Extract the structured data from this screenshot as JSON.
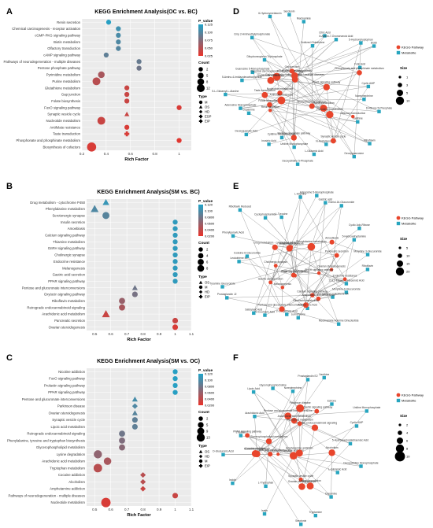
{
  "chart_data": [
    {
      "panel_letter": "A",
      "type": "scatter",
      "title": "KEGG Enrichment Analysis(OC vs. BC)",
      "xlabel": "Rich Factor",
      "xlim": [
        0.2,
        1.1
      ],
      "xticks": [
        "0.2",
        "0.4",
        "0.6",
        "0.8",
        "1"
      ],
      "legend_pvalue_title": "P_value",
      "legend_pvalue_ticks": [
        "0.125",
        "0.100",
        "0.075",
        "0.050",
        "0.025"
      ],
      "legend_count_title": "Count",
      "legend_count_values": [
        2,
        5,
        8,
        12
      ],
      "legend_type_title": "Type",
      "legend_types": [
        "M",
        "OS",
        "HD",
        "ESP",
        "EIP"
      ],
      "color_high": "#1fa3c9",
      "color_low": "#e8332a",
      "categories": [
        "Renin secretion",
        "Chemical carcinogenesis - receptor activation",
        "cGMP-PKG signaling pathway",
        "Biotin metabolism",
        "Olfactory transduction",
        "cAMP signaling pathway",
        "Pathways of neurodegeneration - multiple diseases",
        "Pentose phosphate pathway",
        "Pyrimidine metabolism",
        "Purine metabolism",
        "Glutathione metabolism",
        "Gap junction",
        "Folate biosynthesis",
        "FoxO signaling pathway",
        "Synaptic vesicle cycle",
        "Nucleotide metabolism",
        "Antifolate resistance",
        "Taste transduction",
        "Phosphonate and phosphinate metabolism",
        "Biosynthesis of cofactors"
      ],
      "points": [
        {
          "x": 0.42,
          "p": 0.12,
          "count": 2,
          "type": "M"
        },
        {
          "x": 0.5,
          "p": 0.105,
          "count": 2,
          "type": "M"
        },
        {
          "x": 0.5,
          "p": 0.098,
          "count": 2,
          "type": "M"
        },
        {
          "x": 0.5,
          "p": 0.095,
          "count": 2,
          "type": "M"
        },
        {
          "x": 0.5,
          "p": 0.092,
          "count": 2,
          "type": "M"
        },
        {
          "x": 0.4,
          "p": 0.085,
          "count": 2,
          "type": "M"
        },
        {
          "x": 0.67,
          "p": 0.08,
          "count": 2,
          "type": "M"
        },
        {
          "x": 0.67,
          "p": 0.075,
          "count": 2,
          "type": "M"
        },
        {
          "x": 0.36,
          "p": 0.04,
          "count": 5,
          "type": "M"
        },
        {
          "x": 0.32,
          "p": 0.03,
          "count": 8,
          "type": "M"
        },
        {
          "x": 0.57,
          "p": 0.02,
          "count": 2,
          "type": "M"
        },
        {
          "x": 0.57,
          "p": 0.02,
          "count": 2,
          "type": "M"
        },
        {
          "x": 0.57,
          "p": 0.02,
          "count": 2,
          "type": "M"
        },
        {
          "x": 1.0,
          "p": 0.01,
          "count": 2,
          "type": "M"
        },
        {
          "x": 0.57,
          "p": 0.02,
          "count": 2,
          "type": "OS"
        },
        {
          "x": 0.36,
          "p": 0.02,
          "count": 8,
          "type": "M"
        },
        {
          "x": 0.57,
          "p": 0.01,
          "count": 2,
          "type": "M"
        },
        {
          "x": 0.57,
          "p": 0.01,
          "count": 2,
          "type": "ESP"
        },
        {
          "x": 1.0,
          "p": 0.005,
          "count": 2,
          "type": "M"
        },
        {
          "x": 0.28,
          "p": 0.01,
          "count": 12,
          "type": "M"
        }
      ]
    },
    {
      "panel_letter": "B",
      "type": "scatter",
      "title": "KEGG Enrichment Analysis(SM vs. BC)",
      "xlabel": "Rich Factor",
      "xlim": [
        0.45,
        1.1
      ],
      "xticks": [
        "0.5",
        "0.6",
        "0.7",
        "0.8",
        "0.9",
        "1",
        "1.1"
      ],
      "legend_pvalue_title": "P_value",
      "legend_pvalue_ticks": [
        "0.120",
        "0.100",
        "0.0800",
        "0.0600",
        "0.0400",
        "0.0200"
      ],
      "legend_count_title": "Count",
      "legend_count_values": [
        2,
        4,
        6,
        8
      ],
      "legend_type_title": "Type",
      "legend_types": [
        "OS",
        "M",
        "HD",
        "EIP"
      ],
      "color_high": "#1fa3c9",
      "color_low": "#e8332a",
      "categories": [
        "Drug metabolism - cytochrome P450",
        "Phenylalanine metabolism",
        "Serotonergic synapse",
        "Insulin secretion",
        "Amoebiasis",
        "Calcium signaling pathway",
        "Thiamine metabolism",
        "GnRH signaling pathway",
        "Cholinergic synapse",
        "Endocrine resistance",
        "Melanogenesis",
        "Gastric acid secretion",
        "PPAR signaling pathway",
        "Pentose and glucuronate interconversions",
        "Oxytocin signaling pathway",
        "Riboflavin metabolism",
        "Retrograde endocannabinoid signaling",
        "Arachidonic acid metabolism",
        "Pancreatic secretion",
        "Ovarian steroidogenesis"
      ],
      "points": [
        {
          "x": 0.57,
          "p": 0.11,
          "count": 5,
          "type": "OS"
        },
        {
          "x": 0.5,
          "p": 0.095,
          "count": 8,
          "type": "OS"
        },
        {
          "x": 0.57,
          "p": 0.09,
          "count": 6,
          "type": "M"
        },
        {
          "x": 1.0,
          "p": 0.115,
          "count": 2,
          "type": "M"
        },
        {
          "x": 1.0,
          "p": 0.115,
          "count": 2,
          "type": "M"
        },
        {
          "x": 1.0,
          "p": 0.115,
          "count": 2,
          "type": "M"
        },
        {
          "x": 1.0,
          "p": 0.115,
          "count": 2,
          "type": "M"
        },
        {
          "x": 1.0,
          "p": 0.115,
          "count": 2,
          "type": "M"
        },
        {
          "x": 1.0,
          "p": 0.115,
          "count": 2,
          "type": "M"
        },
        {
          "x": 1.0,
          "p": 0.115,
          "count": 2,
          "type": "M"
        },
        {
          "x": 1.0,
          "p": 0.115,
          "count": 2,
          "type": "M"
        },
        {
          "x": 1.0,
          "p": 0.115,
          "count": 2,
          "type": "M"
        },
        {
          "x": 1.0,
          "p": 0.115,
          "count": 2,
          "type": "M"
        },
        {
          "x": 0.75,
          "p": 0.075,
          "count": 3,
          "type": "OS"
        },
        {
          "x": 0.75,
          "p": 0.07,
          "count": 3,
          "type": "M"
        },
        {
          "x": 0.67,
          "p": 0.05,
          "count": 4,
          "type": "M"
        },
        {
          "x": 0.67,
          "p": 0.04,
          "count": 4,
          "type": "M"
        },
        {
          "x": 0.57,
          "p": 0.02,
          "count": 8,
          "type": "OS"
        },
        {
          "x": 1.0,
          "p": 0.02,
          "count": 3,
          "type": "M"
        },
        {
          "x": 1.0,
          "p": 0.01,
          "count": 3,
          "type": "M"
        }
      ]
    },
    {
      "panel_letter": "C",
      "type": "scatter",
      "title": "KEGG Enrichment Analysis(SM vs. OC)",
      "xlabel": "Rich Factor",
      "xlim": [
        0.45,
        1.1
      ],
      "xticks": [
        "0.5",
        "0.6",
        "0.7",
        "0.8",
        "0.9",
        "1",
        "1.1"
      ],
      "legend_pvalue_title": "P_value",
      "legend_pvalue_ticks": [
        "0.120",
        "0.100",
        "0.0800",
        "0.0600",
        "0.0400",
        "0.0200"
      ],
      "legend_count_title": "Count",
      "legend_count_values": [
        2,
        5,
        9,
        13
      ],
      "legend_type_title": "Type",
      "legend_types": [
        "OS",
        "HD",
        "M",
        "EIP"
      ],
      "color_high": "#1fa3c9",
      "color_low": "#e8332a",
      "categories": [
        "Nicotine addiction",
        "FoxO signaling pathway",
        "Prolactin signaling pathway",
        "PPAR signaling pathway",
        "Pentose and glucuronate interconversions",
        "Parkinson disease",
        "Ovarian steroidogenesis",
        "Synaptic vesicle cycle",
        "Lipoic acid metabolism",
        "Retrograde endocannabinoid signaling",
        "Phenylalanine, tyrosine and tryptophan biosynthesis",
        "Glycerophospholipid metabolism",
        "Lysine degradation",
        "Arachidonic acid metabolism",
        "Tryptophan metabolism",
        "Cocaine addiction",
        "Alcoholism",
        "Amphetamine addiction",
        "Pathways of neurodegeneration - multiple diseases",
        "Nucleotide metabolism"
      ],
      "points": [
        {
          "x": 1.0,
          "p": 0.12,
          "count": 2,
          "type": "M"
        },
        {
          "x": 1.0,
          "p": 0.12,
          "count": 2,
          "type": "M"
        },
        {
          "x": 1.0,
          "p": 0.12,
          "count": 2,
          "type": "M"
        },
        {
          "x": 1.0,
          "p": 0.12,
          "count": 2,
          "type": "M"
        },
        {
          "x": 0.75,
          "p": 0.1,
          "count": 3,
          "type": "OS"
        },
        {
          "x": 0.75,
          "p": 0.095,
          "count": 3,
          "type": "HD"
        },
        {
          "x": 0.75,
          "p": 0.09,
          "count": 3,
          "type": "OS"
        },
        {
          "x": 0.75,
          "p": 0.085,
          "count": 3,
          "type": "M"
        },
        {
          "x": 0.75,
          "p": 0.085,
          "count": 3,
          "type": "M"
        },
        {
          "x": 0.67,
          "p": 0.075,
          "count": 4,
          "type": "M"
        },
        {
          "x": 0.67,
          "p": 0.065,
          "count": 4,
          "type": "M"
        },
        {
          "x": 0.67,
          "p": 0.06,
          "count": 4,
          "type": "M"
        },
        {
          "x": 0.52,
          "p": 0.055,
          "count": 9,
          "type": "M"
        },
        {
          "x": 0.58,
          "p": 0.04,
          "count": 7,
          "type": "M"
        },
        {
          "x": 0.52,
          "p": 0.03,
          "count": 10,
          "type": "M"
        },
        {
          "x": 0.8,
          "p": 0.03,
          "count": 3,
          "type": "HD"
        },
        {
          "x": 0.8,
          "p": 0.03,
          "count": 3,
          "type": "HD"
        },
        {
          "x": 0.8,
          "p": 0.02,
          "count": 3,
          "type": "HD"
        },
        {
          "x": 1.0,
          "p": 0.02,
          "count": 3,
          "type": "M"
        },
        {
          "x": 0.57,
          "p": 0.01,
          "count": 13,
          "type": "M"
        }
      ]
    },
    {
      "panel_letter": "D",
      "type": "network",
      "legend": [
        "KEGG Pathway",
        "Metabolite"
      ],
      "size_title": "Size",
      "size_values": [
        1,
        3,
        5,
        10
      ],
      "pathway_nodes": [
        "Taste transduction",
        "Purine metabolism",
        "Folate biosynthesis",
        "Olfactory transduction",
        "Chemical carcinogenesis - receptor activation",
        "Pentose phosphate pathway",
        "Pathways of neurodegeneration - multiple diseases",
        "Nucleotide metabolism",
        "cGMP-PKG signaling pathway",
        "Glutathione metabolism",
        "Biosynthesis of cofactors",
        "Phosphonate and phosphinate metabolism",
        "Pyrimidine metabolism",
        "FoxO signaling pathway",
        "Renin secretion",
        "Gap junction",
        "Synaptic vesicle cycle",
        "Antifolate resistance"
      ],
      "metabolite_nodes": [
        "Norepinephrine",
        "D-Ribose 5-Phosphate",
        "Xanthine",
        "Riboflavin",
        "Deoxyguanosine",
        "N-Acetylserotonin",
        "L-Glutamic Acid",
        "Deoxycitidine 5-Phosphate",
        "Uridine Monophosphate",
        "Cytidine Monophosphate",
        "Inosinic Acid",
        "Deoxyguanylic Acid",
        "Dopamine",
        "Adenosine Monophosphate",
        "5-L-Glutamyl-L-Alanine",
        "5-Amino-4-Imidazolecarboxyamide",
        "Guanosine 5-Monophosphate",
        "Dihydroneopterin Triphosphate",
        "Cmp 2-Aminoethylphosphonate",
        "6-Hydroxymelatonin",
        "Serotonin",
        "Niacinamide",
        "Oxidized Glutathione",
        "Citric Acid",
        "8-Amino-7-Oxononanoic Acid",
        "5-Hydroxytryptophan",
        "Biotin",
        "Folic Acid",
        "Cyclic AMP"
      ]
    },
    {
      "panel_letter": "E",
      "type": "network",
      "legend": [
        "KEGG Pathway",
        "Metabolite"
      ],
      "size_title": "Size",
      "size_values": [
        5,
        10,
        15,
        20
      ],
      "pathway_nodes": [
        "Insulin secretion",
        "Serotonergic synapse",
        "Calcium signaling pathway",
        "PPAR signaling pathway",
        "Pancreatic secretion",
        "Ovarian steroidogenesis",
        "Arachidonic acid metabolism",
        "Riboflavin metabolism",
        "Pentose and glucuronate interconversions",
        "Drug metabolism - cytochrome P450",
        "Phenylalanine metabolism",
        "Melanogenesis",
        "Amoebiasis",
        "GnRH signaling pathway",
        "Cholinergic synapse",
        "Gastric acid secretion",
        "Thiamine metabolism",
        "Endocrine resistance"
      ],
      "metabolite_nodes": [
        "Riboflavin",
        "12,13-Epoxyoctadecenoic Acid",
        "Morphine-6-Glucuronide",
        "20-Hydroxy Leukotriene B4",
        "Nicotinamide Adenine Dinucleotide",
        "Arachidonic Acid",
        "Lumichrome",
        "2-Oxoglutaric Acid",
        "M-Coumaric Acid",
        "Salicyluric Acid",
        "Prostaglandin J2",
        "Tyramine Glucuronide",
        "Leukotriene B4",
        "Codeine-6-Glucuronide",
        "Phenylpyruvic Acid",
        "Riboflavin Reduced",
        "Cyclophosphamide",
        "L-Tyrosine",
        "L-Arginine",
        "Adenosine 5-Monophosphate",
        "Gastric acid",
        "Estriol-16-Glucuronide",
        "Cyclic Adp-Ribose",
        "5-Hydroxytryptamine",
        "Morphine 3-Glucuronide"
      ]
    },
    {
      "panel_letter": "F",
      "type": "network",
      "legend": [
        "KEGG Pathway",
        "Metabolite"
      ],
      "size_title": "Size",
      "size_values": [
        2,
        4,
        6,
        8,
        10
      ],
      "pathway_nodes": [
        "Nicotine addiction",
        "FoxO signaling pathway",
        "Prolactin signaling pathway",
        "PPAR signaling pathway",
        "Pentose and glucuronate interconversions",
        "Parkinson disease",
        "Ovarian steroidogenesis",
        "Synaptic vesicle cycle",
        "Lipoic acid metabolism",
        "Retrograde endocannabinoid signaling",
        "Glycerophospholipid metabolism",
        "Lysine degradation",
        "Arachidonic acid metabolism",
        "Tryptophan metabolism",
        "Cocaine addiction",
        "Alcoholism",
        "Amphetamine addiction",
        "Nucleotide metabolism"
      ],
      "metabolite_nodes": [
        "5-Hydroxyeicosatetraenoic Acid",
        "Deoxycitidine Monophosphate",
        "L-Glutamic Acid",
        "Dopamine",
        "Tryptamine",
        "Serotonin",
        "Isatin",
        "L-Tryptophan",
        "Indole",
        "D-Glucuronic Acid",
        "L-Lysine",
        "Arachidonic Acid",
        "Lipoic Acid",
        "Glycerophosphocholine",
        "Norepinephrine",
        "Prostaglandin E2",
        "Xanthine",
        "Estrone",
        "Uridine Monophosphate",
        "Cyclic AMP"
      ]
    }
  ]
}
